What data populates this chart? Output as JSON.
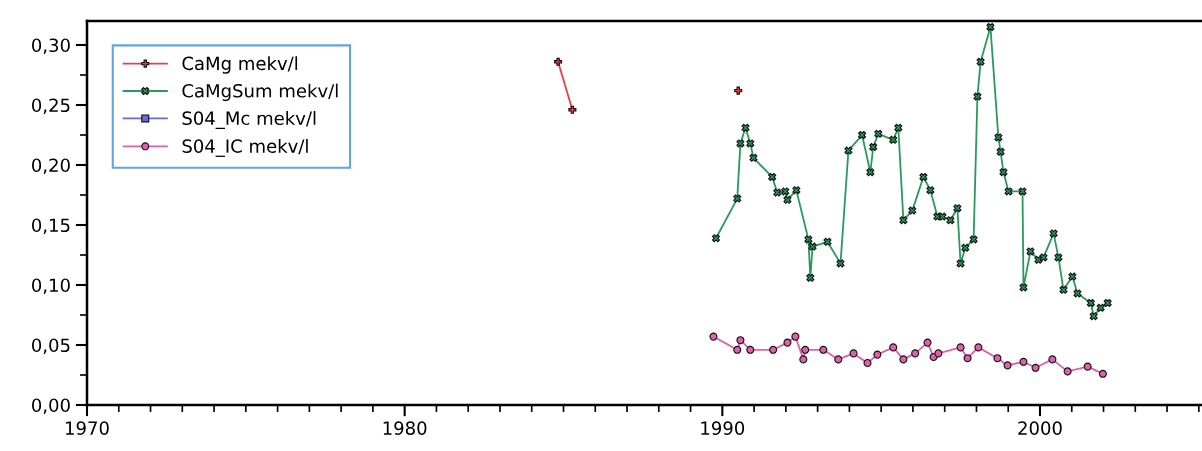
{
  "chart_data": {
    "type": "line",
    "xlim": [
      1970,
      2005.1
    ],
    "xticks": [
      1970,
      1980,
      1990,
      2000
    ],
    "ylim": [
      0,
      0.32
    ],
    "yticks": [
      {
        "value": 0,
        "label": "0,00"
      },
      {
        "value": 0.05,
        "label": "0,05"
      },
      {
        "value": 0.1,
        "label": "0,10"
      },
      {
        "value": 0.15,
        "label": "0,15"
      },
      {
        "value": 0.2,
        "label": "0,20"
      },
      {
        "value": 0.25,
        "label": "0,25"
      },
      {
        "value": 0.3,
        "label": "0,30"
      }
    ],
    "grid": false,
    "legend": "top left",
    "series": [
      {
        "name": "CaMg mekv/l",
        "color": "#e8404a",
        "marker": "cross",
        "x": [
          1984.83,
          1985.28,
          1987.5,
          1990.5
        ],
        "values": [
          0.286,
          0.246,
          null,
          0.262
        ]
      },
      {
        "name": "CaMgSum mekv/l",
        "color": "#2a9a5c",
        "marker": "x",
        "x": [
          1989.8,
          1990.47,
          1990.57,
          1990.73,
          1990.88,
          1990.98,
          1991.57,
          1991.73,
          1991.98,
          1992.05,
          1992.33,
          1992.71,
          1992.77,
          1992.84,
          1993.31,
          1993.72,
          1993.97,
          1994.4,
          1994.66,
          1994.75,
          1994.91,
          1995.38,
          1995.54,
          1995.7,
          1995.98,
          1996.33,
          1996.55,
          1996.77,
          1996.93,
          1997.18,
          1997.4,
          1997.5,
          1997.65,
          1997.91,
          1998.03,
          1998.13,
          1998.44,
          1998.69,
          1998.76,
          1998.85,
          1999.01,
          1999.45,
          1999.48,
          1999.7,
          1999.95,
          2000.11,
          2000.43,
          2000.58,
          2000.74,
          2001.02,
          2001.18,
          2001.6,
          2001.69,
          2001.91,
          2002.13
        ],
        "values": [
          0.139,
          0.172,
          0.218,
          0.231,
          0.218,
          0.206,
          0.19,
          0.177,
          0.178,
          0.171,
          0.179,
          0.138,
          0.106,
          0.132,
          0.136,
          0.118,
          0.212,
          0.225,
          0.194,
          0.215,
          0.226,
          0.221,
          0.231,
          0.154,
          0.162,
          0.19,
          0.179,
          0.157,
          0.157,
          0.154,
          0.164,
          0.118,
          0.131,
          0.138,
          0.257,
          0.286,
          0.315,
          0.223,
          0.211,
          0.194,
          0.178,
          0.178,
          0.098,
          0.128,
          0.121,
          0.123,
          0.143,
          0.123,
          0.096,
          0.107,
          0.093,
          0.085,
          0.074,
          0.081,
          0.085
        ]
      },
      {
        "name": "S04_Mc mekv/l",
        "color": "#6a6ae0",
        "marker": "square"
      },
      {
        "name": "S04_IC mekv/l",
        "color": "#e060b0",
        "marker": "circle",
        "x": [
          1989.72,
          1990.47,
          1990.57,
          1990.88,
          1991.6,
          1992.05,
          1992.3,
          1992.55,
          1992.61,
          1993.18,
          1993.65,
          1994.13,
          1994.57,
          1994.88,
          1995.38,
          1995.7,
          1996.07,
          1996.46,
          1996.65,
          1996.8,
          1997.5,
          1997.72,
          1998.06,
          1998.66,
          1998.98,
          1999.48,
          1999.86,
          2000.39,
          2000.87,
          2001.5,
          2001.98
        ],
        "values": [
          0.057,
          0.046,
          0.054,
          0.046,
          0.046,
          0.052,
          0.057,
          0.038,
          0.046,
          0.046,
          0.038,
          0.043,
          0.035,
          0.042,
          0.048,
          0.038,
          0.043,
          0.052,
          0.04,
          0.043,
          0.048,
          0.039,
          0.048,
          0.039,
          0.033,
          0.036,
          0.031,
          0.038,
          0.028,
          0.032,
          0.026
        ]
      }
    ]
  }
}
